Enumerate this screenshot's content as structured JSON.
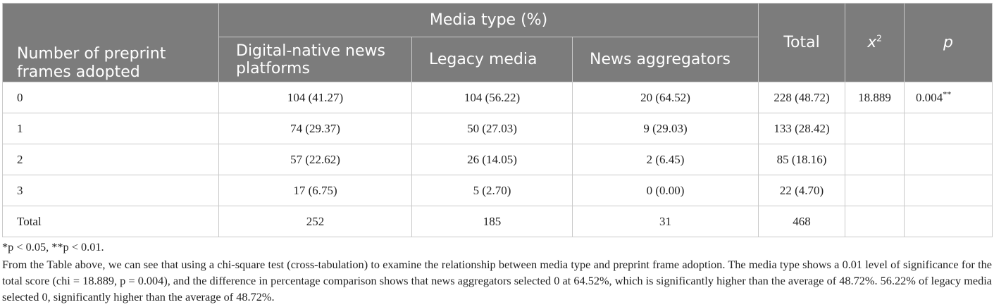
{
  "table": {
    "row_header": "Number of preprint frames adopted",
    "group_header": "Media type (%)",
    "columns": {
      "digital": "Digital-native news platforms",
      "legacy": "Legacy media",
      "aggregators": "News aggregators",
      "total": "Total",
      "chi_base": "x",
      "chi_exp": "2",
      "p": "p"
    },
    "rows": [
      {
        "label": "0",
        "digital": "104 (41.27)",
        "legacy": "104 (56.22)",
        "aggregators": "20 (64.52)",
        "total": "228 (48.72)",
        "chi": "18.889",
        "p": "0.004",
        "p_sig": "**"
      },
      {
        "label": "1",
        "digital": "74 (29.37)",
        "legacy": "50 (27.03)",
        "aggregators": "9 (29.03)",
        "total": "133 (28.42)",
        "chi": "",
        "p": "",
        "p_sig": ""
      },
      {
        "label": "2",
        "digital": "57 (22.62)",
        "legacy": "26 (14.05)",
        "aggregators": "2 (6.45)",
        "total": "85 (18.16)",
        "chi": "",
        "p": "",
        "p_sig": ""
      },
      {
        "label": "3",
        "digital": "17 (6.75)",
        "legacy": "5 (2.70)",
        "aggregators": "0 (0.00)",
        "total": "22 (4.70)",
        "chi": "",
        "p": "",
        "p_sig": ""
      },
      {
        "label": "Total",
        "digital": "252",
        "legacy": "185",
        "aggregators": "31",
        "total": "468",
        "chi": "",
        "p": "",
        "p_sig": ""
      }
    ]
  },
  "notes": {
    "footnote": "*p < 0.05, **p < 0.01.",
    "paragraph": "From the Table above, we can see that using a chi-square test (cross-tabulation) to examine the relationship between media type and preprint frame adoption. The media type shows a 0.01 level of significance for the total score (chi = 18.889, p = 0.004), and the difference in percentage comparison shows that news aggregators selected 0 at 64.52%, which is significantly higher than the average of 48.72%. 56.22% of legacy media selected 0, significantly higher than the average of 48.72%."
  }
}
